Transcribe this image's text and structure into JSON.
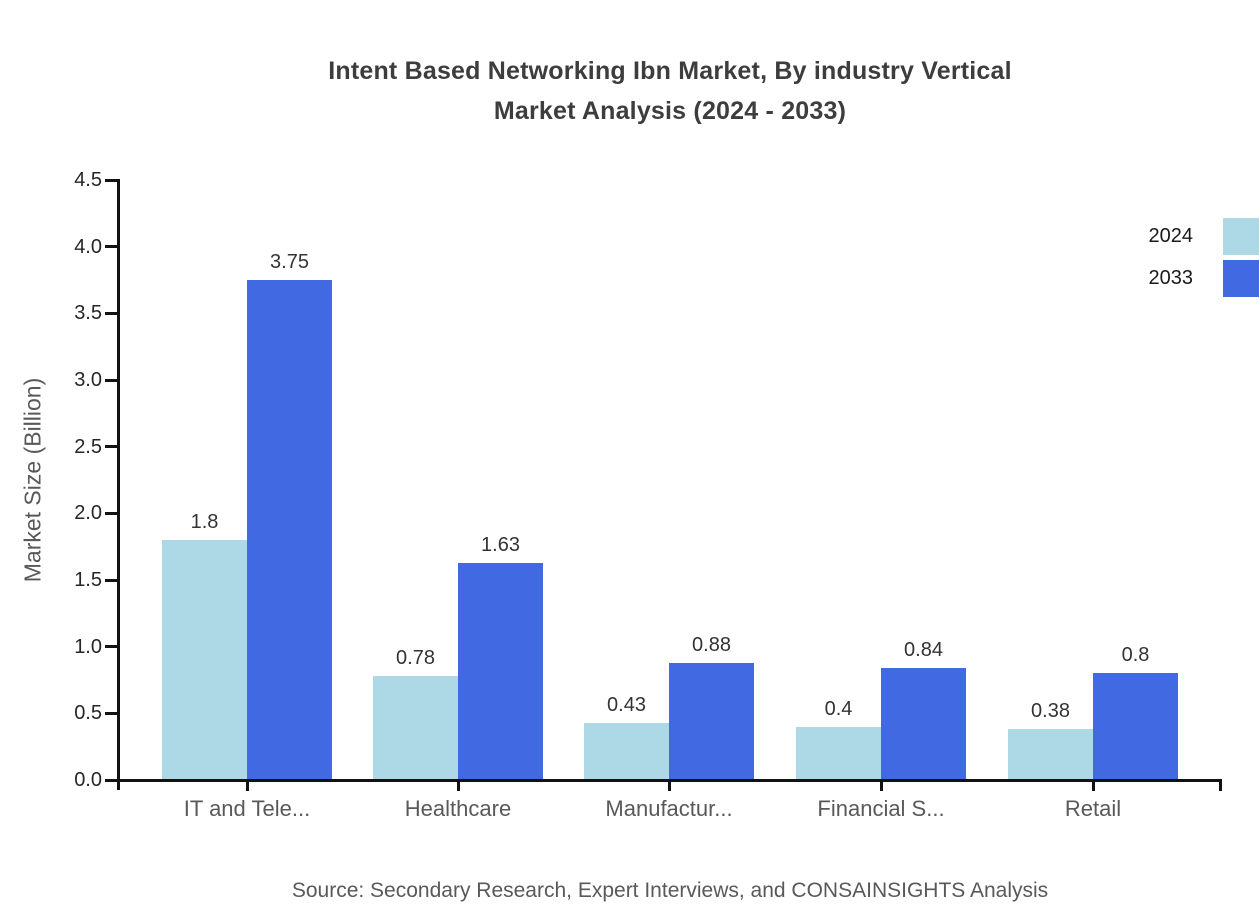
{
  "title": {
    "line1": "Intent Based Networking Ibn Market, By industry Vertical",
    "line2": "Market Analysis (2024 - 2033)"
  },
  "y_axis": {
    "label": "Market Size (Billion)",
    "ticks": [
      {
        "value": 0.0,
        "label": "0.0"
      },
      {
        "value": 0.5,
        "label": "0.5"
      },
      {
        "value": 1.0,
        "label": "1.0"
      },
      {
        "value": 1.5,
        "label": "1.5"
      },
      {
        "value": 2.0,
        "label": "2.0"
      },
      {
        "value": 2.5,
        "label": "2.5"
      },
      {
        "value": 3.0,
        "label": "3.0"
      },
      {
        "value": 3.5,
        "label": "3.5"
      },
      {
        "value": 4.0,
        "label": "4.0"
      },
      {
        "value": 4.5,
        "label": "4.5"
      }
    ]
  },
  "legend": {
    "items": [
      {
        "label": "2024",
        "color": "#ADD8E6"
      },
      {
        "label": "2033",
        "color": "#4169E1"
      }
    ]
  },
  "source_note": "Source: Secondary Research, Expert Interviews, and CONSAINSIGHTS Analysis",
  "chart_data": {
    "type": "bar",
    "title": "Intent Based Networking Ibn Market, By industry Vertical Market Analysis (2024 - 2033)",
    "categories": [
      "IT and Tele...",
      "Healthcare",
      "Manufactur...",
      "Financial S...",
      "Retail"
    ],
    "series": [
      {
        "name": "2024",
        "color": "#ADD8E6",
        "values": [
          1.8,
          0.78,
          0.43,
          0.4,
          0.38
        ],
        "labels": [
          "1.8",
          "0.78",
          "0.43",
          "0.4",
          "0.38"
        ]
      },
      {
        "name": "2033",
        "color": "#4169E1",
        "values": [
          3.75,
          1.63,
          0.88,
          0.84,
          0.8
        ],
        "labels": [
          "3.75",
          "1.63",
          "0.88",
          "0.84",
          "0.8"
        ]
      }
    ],
    "xlabel": "",
    "ylabel": "Market Size (Billion)",
    "ylim": [
      0,
      4.5
    ],
    "ytick_step": 0.5,
    "grid": false,
    "legend_position": "top-right",
    "bar_value_labels": true
  }
}
